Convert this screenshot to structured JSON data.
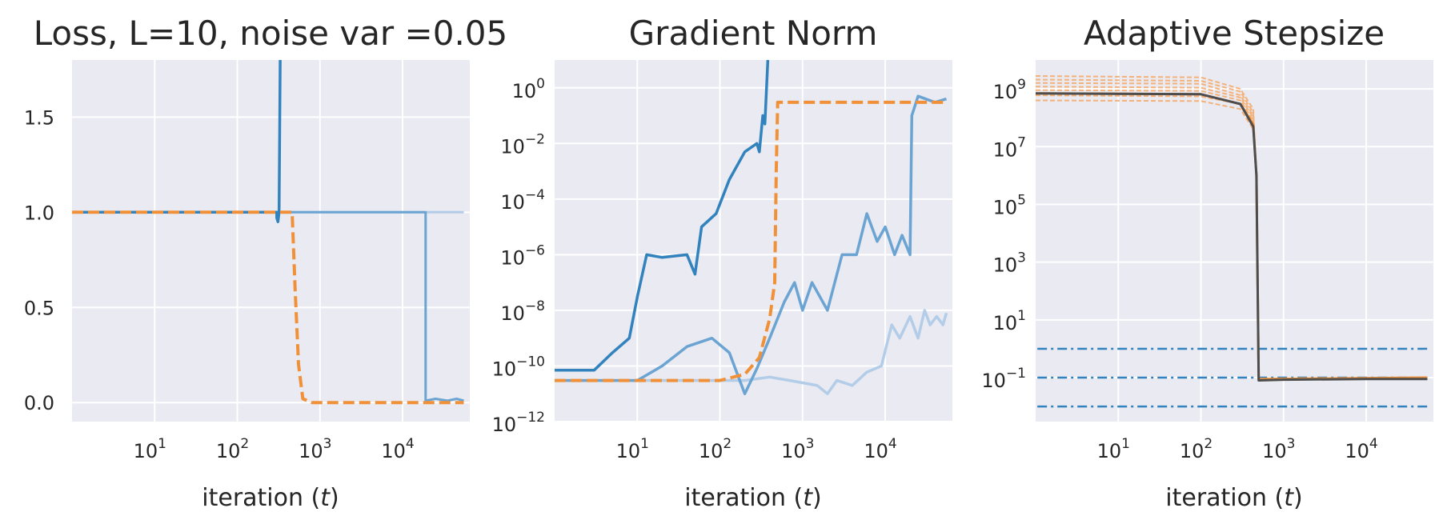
{
  "colors": {
    "background": "#eaeaf2",
    "grid": "#ffffff",
    "blue": "#3182bd",
    "blue_mid": "#6ba4d2",
    "blue_light": "#b3cde8",
    "orange": "#f0913a",
    "orange_light": "#f4b27a",
    "dark": "#4d4d4d"
  },
  "panels": [
    {
      "title": "Loss, L=10, noise var =0.05",
      "xlabel": "iteration (t)",
      "xlabel_main": "iteration (",
      "xlabel_var": "t",
      "xlabel_close": ")"
    },
    {
      "title": "Gradient Norm",
      "xlabel": "iteration (t)",
      "xlabel_main": "iteration (",
      "xlabel_var": "t",
      "xlabel_close": ")"
    },
    {
      "title": "Adaptive Stepsize",
      "xlabel": "iteration (t)",
      "xlabel_main": "iteration (",
      "xlabel_var": "t",
      "xlabel_close": ")"
    }
  ],
  "chart_data": [
    {
      "type": "line",
      "title": "Loss, L=10, noise var =0.05",
      "xlabel": "iteration (t)",
      "ylabel": "",
      "xscale": "log",
      "yscale": "linear",
      "xlim": [
        1,
        65000
      ],
      "ylim": [
        -0.1,
        1.8
      ],
      "xticks": [
        10,
        100,
        1000,
        10000
      ],
      "xtick_labels": [
        [
          "10",
          "1"
        ],
        [
          "10",
          "2"
        ],
        [
          "10",
          "3"
        ],
        [
          "10",
          "4"
        ]
      ],
      "yticks": [
        0.0,
        0.5,
        1.0,
        1.5
      ],
      "ytick_labels": [
        "0.0",
        "0.5",
        "1.0",
        "1.5"
      ],
      "grid": true,
      "series": [
        {
          "color": "blue_light",
          "style": "solid",
          "width": 3,
          "points": [
            [
              1,
              1.0
            ],
            [
              55000,
              1.0
            ]
          ]
        },
        {
          "color": "blue_mid",
          "style": "solid",
          "width": 3,
          "points": [
            [
              1,
              1.0
            ],
            [
              19000,
              1.0
            ],
            [
              19000,
              0.01
            ],
            [
              25000,
              0.02
            ],
            [
              35000,
              0.01
            ],
            [
              45000,
              0.02
            ],
            [
              55000,
              0.01
            ]
          ]
        },
        {
          "color": "blue",
          "style": "solid",
          "width": 3.5,
          "points": [
            [
              1,
              1.0
            ],
            [
              300,
              1.0
            ],
            [
              300,
              0.97
            ],
            [
              310,
              0.95
            ],
            [
              320,
              1.0
            ],
            [
              330,
              1.8
            ]
          ]
        },
        {
          "color": "orange",
          "style": "dashed",
          "width": 4,
          "points": [
            [
              1,
              1.0
            ],
            [
              460,
              1.0
            ],
            [
              500,
              0.6
            ],
            [
              550,
              0.2
            ],
            [
              620,
              0.02
            ],
            [
              800,
              0.0
            ],
            [
              55000,
              0.0
            ]
          ]
        }
      ]
    },
    {
      "type": "line",
      "title": "Gradient Norm",
      "xlabel": "iteration (t)",
      "ylabel": "",
      "xscale": "log",
      "yscale": "log",
      "xlim": [
        1,
        65000
      ],
      "ylim": [
        1e-12,
        10
      ],
      "xticks": [
        10,
        100,
        1000,
        10000
      ],
      "xtick_labels": [
        [
          "10",
          "1"
        ],
        [
          "10",
          "2"
        ],
        [
          "10",
          "3"
        ],
        [
          "10",
          "4"
        ]
      ],
      "yticks": [
        1e-12,
        1e-10,
        1e-08,
        1e-06,
        0.0001,
        0.01,
        1
      ],
      "ytick_labels": [
        [
          "10",
          "−12"
        ],
        [
          "10",
          "−10"
        ],
        [
          "10",
          "−8"
        ],
        [
          "10",
          "−6"
        ],
        [
          "10",
          "−4"
        ],
        [
          "10",
          "−2"
        ],
        [
          "10",
          "0"
        ]
      ],
      "grid": true,
      "series": [
        {
          "color": "blue_light",
          "style": "solid",
          "width": 3.5,
          "points": [
            [
              1,
              3e-11
            ],
            [
              200,
              3e-11
            ],
            [
              400,
              4e-11
            ],
            [
              700,
              3e-11
            ],
            [
              1500,
              2e-11
            ],
            [
              2000,
              1e-11
            ],
            [
              2600,
              3e-11
            ],
            [
              4000,
              2e-11
            ],
            [
              6000,
              6e-11
            ],
            [
              9000,
              1e-10
            ],
            [
              12000,
              3e-09
            ],
            [
              15000,
              1e-09
            ],
            [
              20000,
              6e-09
            ],
            [
              25000,
              1e-09
            ],
            [
              30000,
              1e-08
            ],
            [
              35000,
              3e-09
            ],
            [
              42000,
              6e-09
            ],
            [
              50000,
              3e-09
            ],
            [
              55000,
              8e-09
            ]
          ]
        },
        {
          "color": "blue_mid",
          "style": "solid",
          "width": 3.5,
          "points": [
            [
              1,
              3e-11
            ],
            [
              10,
              3e-11
            ],
            [
              20,
              1e-10
            ],
            [
              40,
              5e-10
            ],
            [
              80,
              1e-09
            ],
            [
              130,
              3e-10
            ],
            [
              200,
              1e-11
            ],
            [
              280,
              8e-11
            ],
            [
              400,
              1e-09
            ],
            [
              600,
              2e-08
            ],
            [
              800,
              1e-07
            ],
            [
              1000,
              1e-08
            ],
            [
              1300,
              1e-07
            ],
            [
              2000,
              1e-08
            ],
            [
              3000,
              1e-06
            ],
            [
              4500,
              1e-06
            ],
            [
              6000,
              3e-05
            ],
            [
              8000,
              3e-06
            ],
            [
              10000,
              1e-05
            ],
            [
              13000,
              1e-06
            ],
            [
              16000,
              5e-06
            ],
            [
              20000,
              1e-06
            ],
            [
              21000,
              0.1
            ],
            [
              25000,
              0.5
            ],
            [
              40000,
              0.3
            ],
            [
              55000,
              0.4
            ]
          ]
        },
        {
          "color": "blue",
          "style": "solid",
          "width": 3.5,
          "points": [
            [
              1,
              7e-11
            ],
            [
              3,
              7e-11
            ],
            [
              5,
              3e-10
            ],
            [
              8,
              1e-09
            ],
            [
              10,
              3e-08
            ],
            [
              13,
              1e-06
            ],
            [
              20,
              8e-07
            ],
            [
              40,
              1e-06
            ],
            [
              50,
              2e-07
            ],
            [
              60,
              1e-05
            ],
            [
              90,
              3e-05
            ],
            [
              130,
              0.0005
            ],
            [
              200,
              0.005
            ],
            [
              280,
              0.01
            ],
            [
              300,
              0.005
            ],
            [
              330,
              0.1
            ],
            [
              350,
              0.05
            ],
            [
              380,
              10
            ]
          ]
        },
        {
          "color": "orange",
          "style": "dashed",
          "width": 4,
          "points": [
            [
              1,
              3e-11
            ],
            [
              100,
              3e-11
            ],
            [
              200,
              5e-11
            ],
            [
              300,
              2e-10
            ],
            [
              400,
              5e-09
            ],
            [
              460,
              1e-07
            ],
            [
              480,
              0.001
            ],
            [
              500,
              0.3
            ],
            [
              55000,
              0.3
            ]
          ]
        }
      ]
    },
    {
      "type": "line",
      "title": "Adaptive Stepsize",
      "xlabel": "iteration (t)",
      "ylabel": "",
      "xscale": "log",
      "yscale": "log",
      "xlim": [
        1,
        65000
      ],
      "ylim": [
        0.003,
        10000000000.0
      ],
      "xticks": [
        10,
        100,
        1000,
        10000
      ],
      "xtick_labels": [
        [
          "10",
          "1"
        ],
        [
          "10",
          "2"
        ],
        [
          "10",
          "3"
        ],
        [
          "10",
          "4"
        ]
      ],
      "yticks": [
        0.1,
        10,
        1000,
        100000,
        10000000,
        1000000000
      ],
      "ytick_labels": [
        [
          "10",
          "−1"
        ],
        [
          "10",
          "1"
        ],
        [
          "10",
          "3"
        ],
        [
          "10",
          "5"
        ],
        [
          "10",
          "7"
        ],
        [
          "10",
          "9"
        ]
      ],
      "grid": true,
      "hlines": [
        1,
        0.1,
        0.01
      ],
      "series": [
        {
          "color": "orange_light",
          "style": "dashed",
          "width": 2,
          "points": [
            [
              1,
              2800000000.0
            ],
            [
              100,
              2500000000.0
            ],
            [
              300,
              1000000000.0
            ],
            [
              430,
              200000000.0
            ],
            [
              470,
              1000000.0
            ],
            [
              500,
              0.09
            ],
            [
              55000,
              0.1
            ]
          ]
        },
        {
          "color": "orange_light",
          "style": "dashed",
          "width": 2,
          "points": [
            [
              1,
              2100000000.0
            ],
            [
              100,
              1900000000.0
            ],
            [
              300,
              800000000.0
            ],
            [
              430,
              150000000.0
            ],
            [
              470,
              1000000.0
            ],
            [
              500,
              0.09
            ],
            [
              55000,
              0.1
            ]
          ]
        },
        {
          "color": "orange_light",
          "style": "dashed",
          "width": 2,
          "points": [
            [
              1,
              1600000000.0
            ],
            [
              100,
              1500000000.0
            ],
            [
              300,
              600000000.0
            ],
            [
              430,
              120000000.0
            ],
            [
              470,
              1000000.0
            ],
            [
              500,
              0.09
            ],
            [
              55000,
              0.1
            ]
          ]
        },
        {
          "color": "orange_light",
          "style": "dashed",
          "width": 2,
          "points": [
            [
              1,
              1200000000.0
            ],
            [
              100,
              1100000000.0
            ],
            [
              300,
              500000000.0
            ],
            [
              430,
              100000000.0
            ],
            [
              470,
              1000000.0
            ],
            [
              500,
              0.09
            ],
            [
              55000,
              0.1
            ]
          ]
        },
        {
          "color": "orange_light",
          "style": "dashed",
          "width": 2,
          "points": [
            [
              1,
              900000000.0
            ],
            [
              100,
              850000000.0
            ],
            [
              300,
              400000000.0
            ],
            [
              430,
              80000000.0
            ],
            [
              470,
              1000000.0
            ],
            [
              500,
              0.09
            ],
            [
              55000,
              0.1
            ]
          ]
        },
        {
          "color": "orange_light",
          "style": "dashed",
          "width": 2,
          "points": [
            [
              1,
              600000000.0
            ],
            [
              100,
              550000000.0
            ],
            [
              300,
              300000000.0
            ],
            [
              430,
              60000000.0
            ],
            [
              470,
              1000000.0
            ],
            [
              500,
              0.09
            ],
            [
              55000,
              0.1
            ]
          ]
        },
        {
          "color": "orange_light",
          "style": "dashed",
          "width": 2,
          "points": [
            [
              1,
              400000000.0
            ],
            [
              100,
              380000000.0
            ],
            [
              300,
              200000000.0
            ],
            [
              430,
              40000000.0
            ],
            [
              470,
              1000000.0
            ],
            [
              500,
              0.09
            ],
            [
              55000,
              0.1
            ]
          ]
        },
        {
          "color": "orange",
          "style": "solid",
          "width": 3,
          "points": [
            [
              1,
              700000000.0
            ],
            [
              100,
              650000000.0
            ],
            [
              300,
              300000000.0
            ],
            [
              430,
              60000000.0
            ],
            [
              470,
              1000000.0
            ],
            [
              500,
              0.09
            ],
            [
              55000,
              0.1
            ]
          ]
        },
        {
          "color": "dark",
          "style": "solid",
          "width": 3,
          "points": [
            [
              1,
              700000000.0
            ],
            [
              100,
              650000000.0
            ],
            [
              300,
              300000000.0
            ],
            [
              430,
              50000000.0
            ],
            [
              470,
              1000000.0
            ],
            [
              500,
              0.08
            ],
            [
              1000,
              0.085
            ],
            [
              10000,
              0.09
            ],
            [
              55000,
              0.09
            ]
          ]
        }
      ]
    }
  ]
}
